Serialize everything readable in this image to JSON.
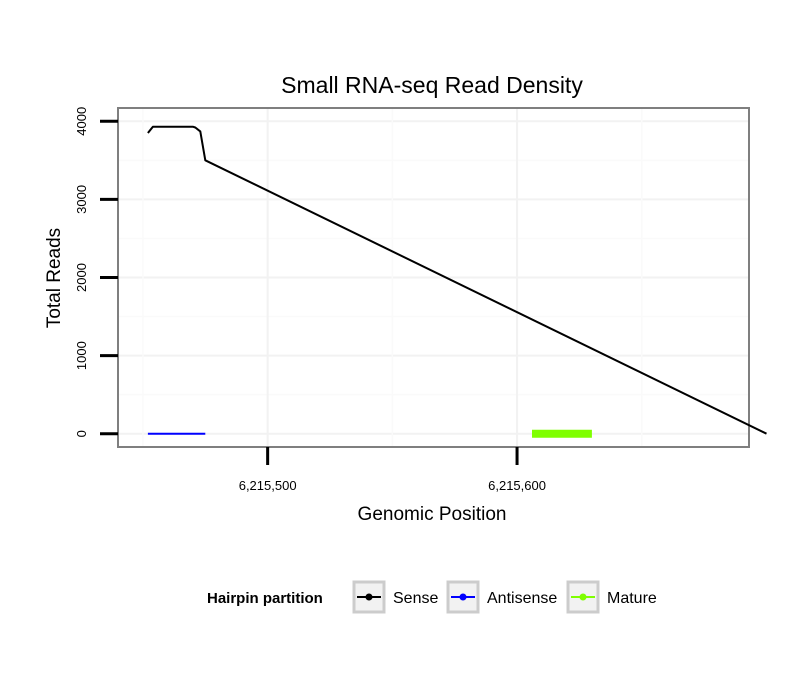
{
  "chart_data": {
    "type": "line",
    "title": "Small RNA-seq Read Density",
    "xlabel": "Genomic Position",
    "ylabel": "Total Reads",
    "xlim": [
      6215440,
      6215693
    ],
    "ylim": [
      -170,
      4170
    ],
    "x_ticks": [
      6215500,
      6215600
    ],
    "x_tick_labels": [
      "6,215,500",
      "6,215,600"
    ],
    "y_ticks": [
      0,
      1000,
      2000,
      3000,
      4000
    ],
    "y_tick_labels": [
      "0",
      "1000",
      "2000",
      "3000",
      "4000"
    ],
    "grid": true,
    "legend": {
      "title": "Hairpin partition",
      "position": "bottom",
      "entries": [
        "Sense",
        "Antisense",
        "Mature"
      ]
    },
    "series": [
      {
        "name": "Sense",
        "color": "#000000",
        "x": [
          6215452,
          6215454,
          6215456,
          6215470,
          6215471,
          6215473,
          6215475,
          6215700
        ],
        "y": [
          3850,
          3930,
          3930,
          3930,
          3920,
          3870,
          3500,
          0
        ]
      },
      {
        "name": "Antisense",
        "color": "#0000ff",
        "x": [
          6215452,
          6215475
        ],
        "y": [
          0,
          0
        ]
      },
      {
        "name": "Mature",
        "color": "#7fff00",
        "x": [
          6215606,
          6215630
        ],
        "y": [
          0,
          0
        ]
      }
    ]
  }
}
